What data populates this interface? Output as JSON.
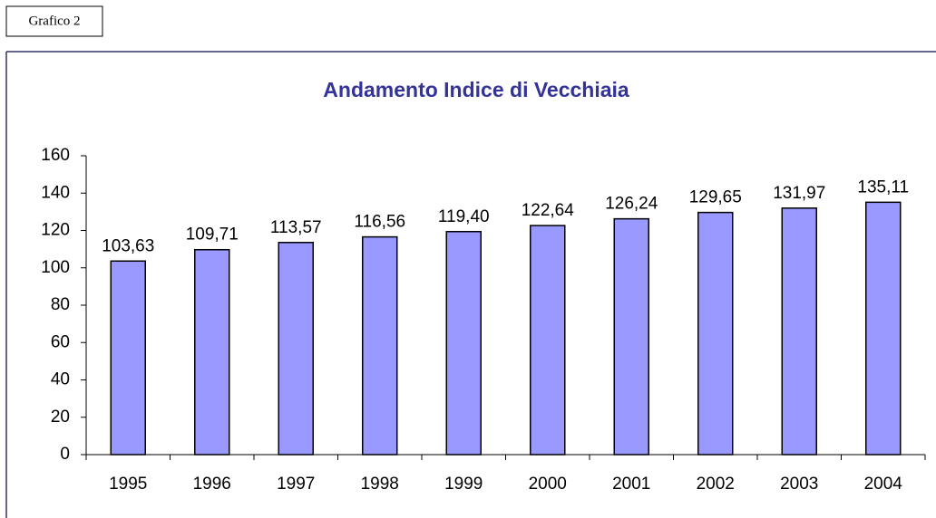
{
  "label": "Grafico 2",
  "chart_data": {
    "type": "bar",
    "title": "Andamento Indice di Vecchiaia",
    "categories": [
      "1995",
      "1996",
      "1997",
      "1998",
      "1999",
      "2000",
      "2001",
      "2002",
      "2003",
      "2004"
    ],
    "values": [
      103.63,
      109.71,
      113.57,
      116.56,
      119.4,
      122.64,
      126.24,
      129.65,
      131.97,
      135.11
    ],
    "value_labels": [
      "103,63",
      "109,71",
      "113,57",
      "116,56",
      "119,40",
      "122,64",
      "126,24",
      "129,65",
      "131,97",
      "135,11"
    ],
    "color": "#9999ff",
    "ylim": [
      0,
      160
    ],
    "yticks": [
      0,
      20,
      40,
      60,
      80,
      100,
      120,
      140,
      160
    ],
    "grid": false
  }
}
